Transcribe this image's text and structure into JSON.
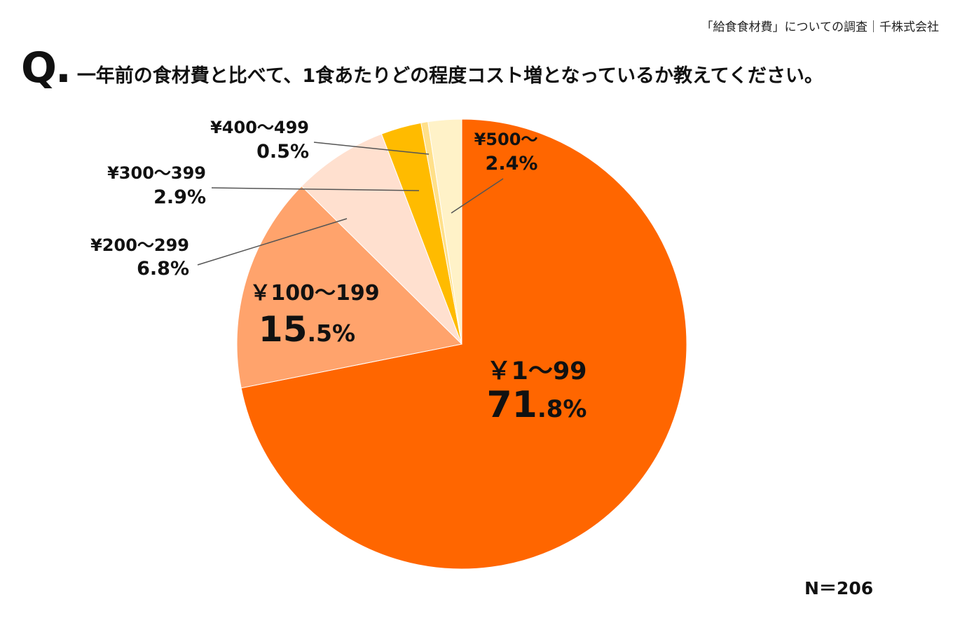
{
  "header": {
    "source": "「給食食材費」についての調査｜千株式会社"
  },
  "question": {
    "mark": "Q.",
    "text": "一年前の食材費と比べて、1食あたりどの程度コスト増となっているか教えてください。"
  },
  "footer": {
    "n": "N＝206"
  },
  "colors": {
    "slice_1": "#ff6600",
    "slice_2": "#ffa36c",
    "slice_3": "#ffe0cf",
    "slice_4": "#ffbb00",
    "slice_5": "#ffe08a",
    "slice_6": "#fff2c8",
    "leader_line": "#555555"
  },
  "chart_data": {
    "type": "pie",
    "start": "12 o'clock",
    "direction": "clockwise",
    "slices": [
      {
        "label": "￥1〜99",
        "value": 71.8,
        "display_int": "71",
        "display_dec": ".8%"
      },
      {
        "label": "￥100〜199",
        "value": 15.5,
        "display_int": "15",
        "display_dec": ".5%"
      },
      {
        "label": "¥200〜299",
        "value": 6.8,
        "display": "6.8%"
      },
      {
        "label": "¥300〜399",
        "value": 2.9,
        "display": "2.9%"
      },
      {
        "label": "¥400〜499",
        "value": 0.5,
        "display": "0.5%"
      },
      {
        "label": "¥500〜",
        "value": 2.4,
        "display": "2.4%"
      }
    ]
  }
}
